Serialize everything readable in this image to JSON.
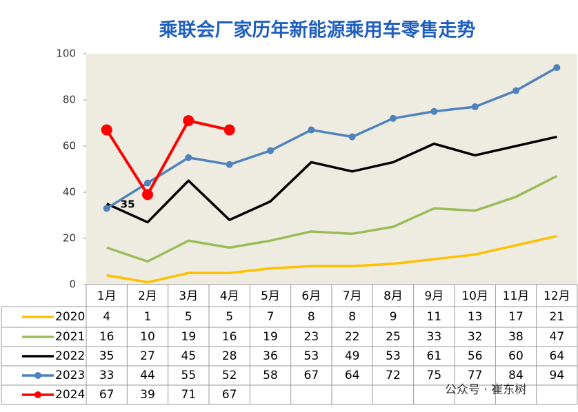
{
  "chart_data": {
    "type": "line",
    "title": "乘联会厂家历年新能源乘用车零售走势",
    "categories": [
      "1月",
      "2月",
      "3月",
      "4月",
      "5月",
      "6月",
      "7月",
      "8月",
      "9月",
      "10月",
      "11月",
      "12月"
    ],
    "series": [
      {
        "name": "2020",
        "color": "#ffc000",
        "marker": false,
        "values": [
          4,
          1,
          5,
          5,
          7,
          8,
          8,
          9,
          11,
          13,
          17,
          21
        ]
      },
      {
        "name": "2021",
        "color": "#9bbb59",
        "marker": false,
        "values": [
          16,
          10,
          19,
          16,
          19,
          23,
          22,
          25,
          33,
          32,
          38,
          47
        ]
      },
      {
        "name": "2022",
        "color": "#000000",
        "marker": false,
        "values": [
          35,
          27,
          45,
          28,
          36,
          53,
          49,
          53,
          61,
          56,
          60,
          64
        ]
      },
      {
        "name": "2023",
        "color": "#4f81bd",
        "marker": true,
        "values": [
          33,
          44,
          55,
          52,
          58,
          67,
          64,
          72,
          75,
          77,
          84,
          94
        ]
      },
      {
        "name": "2024",
        "color": "#ff0000",
        "marker": true,
        "values": [
          67,
          39,
          71,
          67,
          null,
          null,
          null,
          null,
          null,
          null,
          null,
          null
        ]
      }
    ],
    "ylim": [
      0,
      100
    ],
    "yticks": [
      0,
      20,
      40,
      60,
      80,
      100
    ],
    "plot_background": "#eeece1",
    "watermark": "公众号 · 崔东树"
  }
}
